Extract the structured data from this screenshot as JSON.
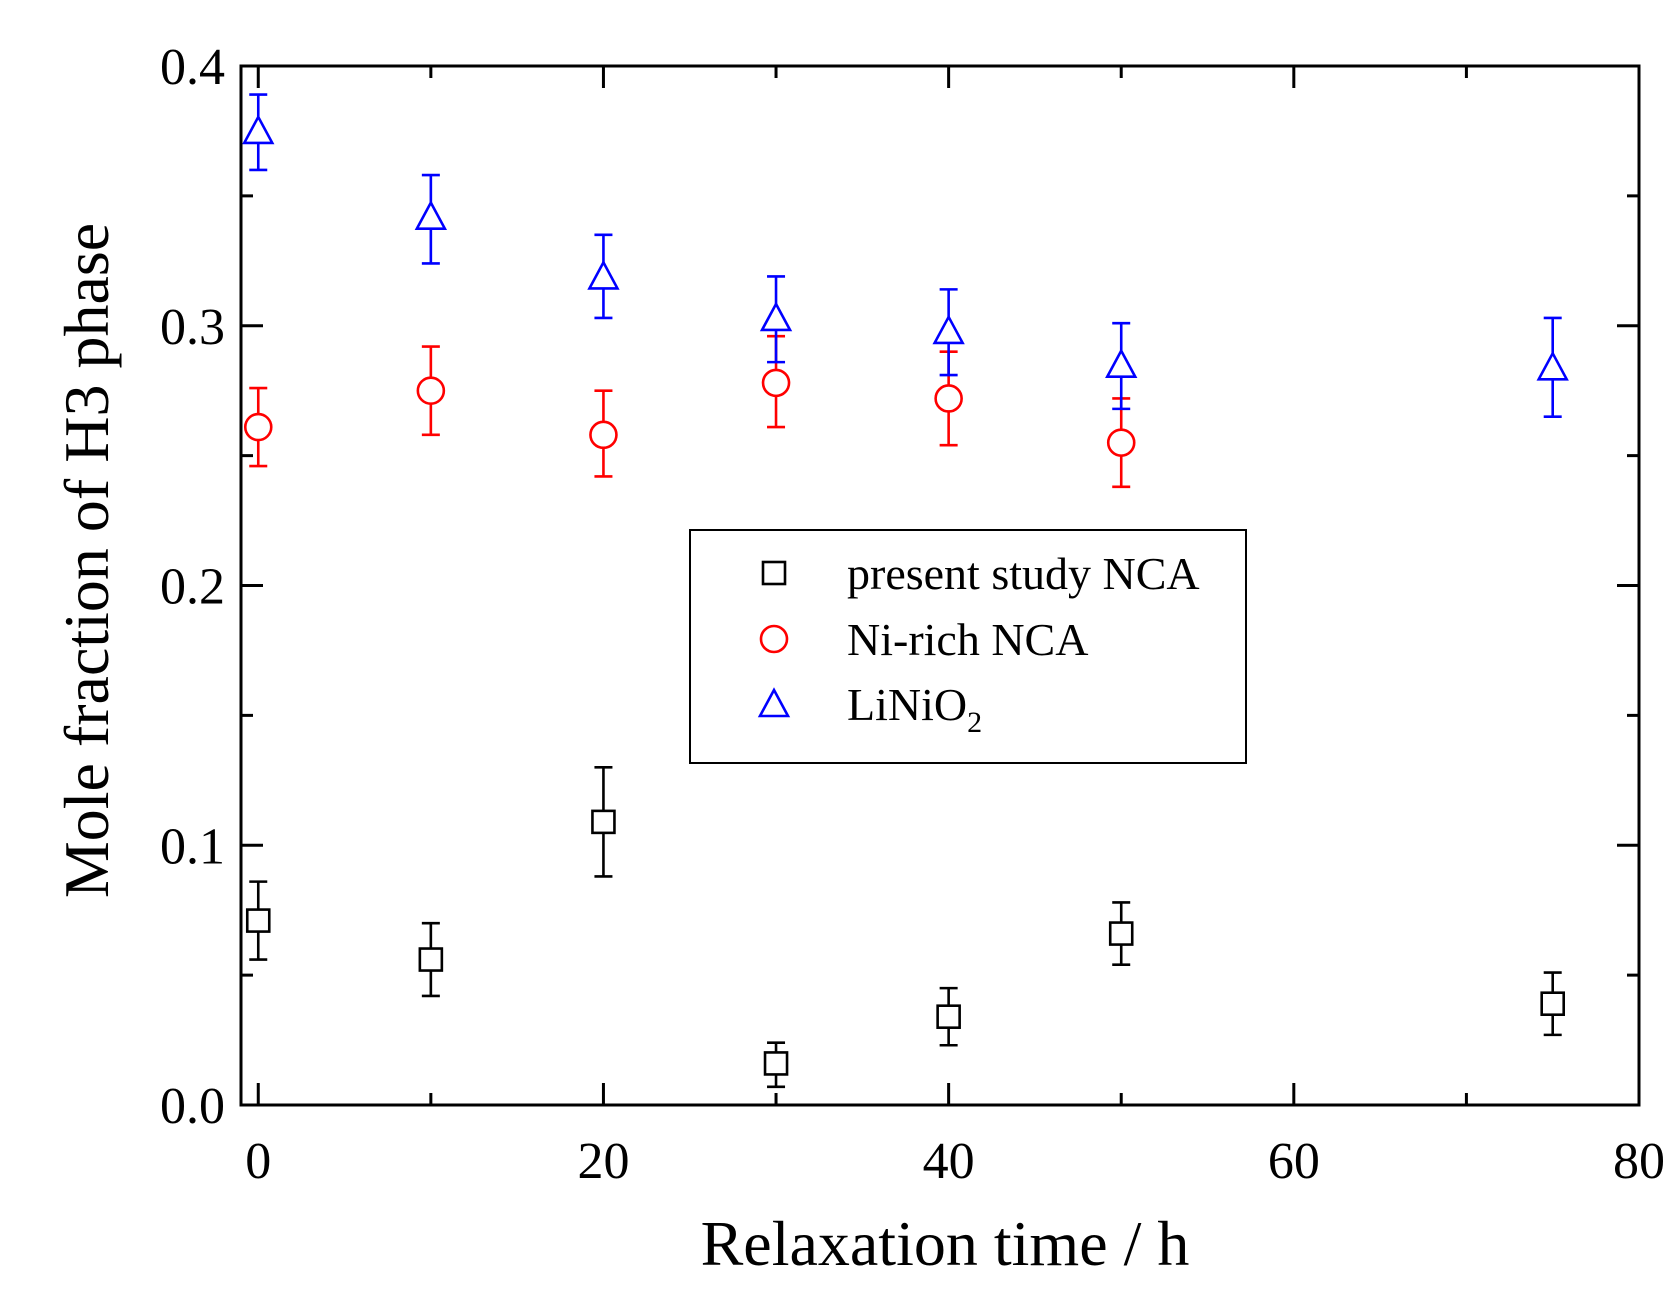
{
  "chart_data": {
    "type": "scatter",
    "title": "",
    "xlabel": "Relaxation time / h",
    "ylabel": "Mole fraction of H3 phase",
    "xlim": [
      -1,
      80
    ],
    "ylim": [
      0.0,
      0.4
    ],
    "xticks": [
      0,
      20,
      40,
      60,
      80
    ],
    "xtick_labels": [
      "0",
      "20",
      "40",
      "60",
      "80"
    ],
    "xminor": [
      10,
      30,
      50,
      70
    ],
    "yticks": [
      0.0,
      0.1,
      0.2,
      0.3,
      0.4
    ],
    "ytick_labels": [
      "0.0",
      "0.1",
      "0.2",
      "0.3",
      "0.4"
    ],
    "yminor": [
      0.05,
      0.15,
      0.25,
      0.35
    ],
    "grid": false,
    "legend_position": "center",
    "series": [
      {
        "name": "present study NCA",
        "marker": "square",
        "color": "#000000",
        "x": [
          0,
          10,
          20,
          30,
          40,
          50,
          75
        ],
        "y": [
          0.071,
          0.056,
          0.109,
          0.016,
          0.034,
          0.066,
          0.039
        ],
        "err_low": [
          0.056,
          0.042,
          0.088,
          0.007,
          0.023,
          0.054,
          0.027
        ],
        "err_high": [
          0.086,
          0.07,
          0.13,
          0.024,
          0.045,
          0.078,
          0.051
        ]
      },
      {
        "name": "Ni-rich NCA",
        "marker": "circle",
        "color": "#ff0000",
        "x": [
          0,
          10,
          20,
          30,
          40,
          50
        ],
        "y": [
          0.261,
          0.275,
          0.258,
          0.278,
          0.272,
          0.255
        ],
        "err_low": [
          0.246,
          0.258,
          0.242,
          0.261,
          0.254,
          0.238
        ],
        "err_high": [
          0.276,
          0.292,
          0.275,
          0.296,
          0.29,
          0.272
        ]
      },
      {
        "name": "LiNiO",
        "name_subscript": "2",
        "marker": "triangle",
        "color": "#0000ff",
        "x": [
          0,
          10,
          20,
          30,
          40,
          50,
          75
        ],
        "y": [
          0.375,
          0.342,
          0.319,
          0.303,
          0.298,
          0.285,
          0.284
        ],
        "err_low": [
          0.36,
          0.324,
          0.303,
          0.286,
          0.281,
          0.268,
          0.265
        ],
        "err_high": [
          0.389,
          0.358,
          0.335,
          0.319,
          0.314,
          0.301,
          0.303
        ]
      }
    ]
  }
}
